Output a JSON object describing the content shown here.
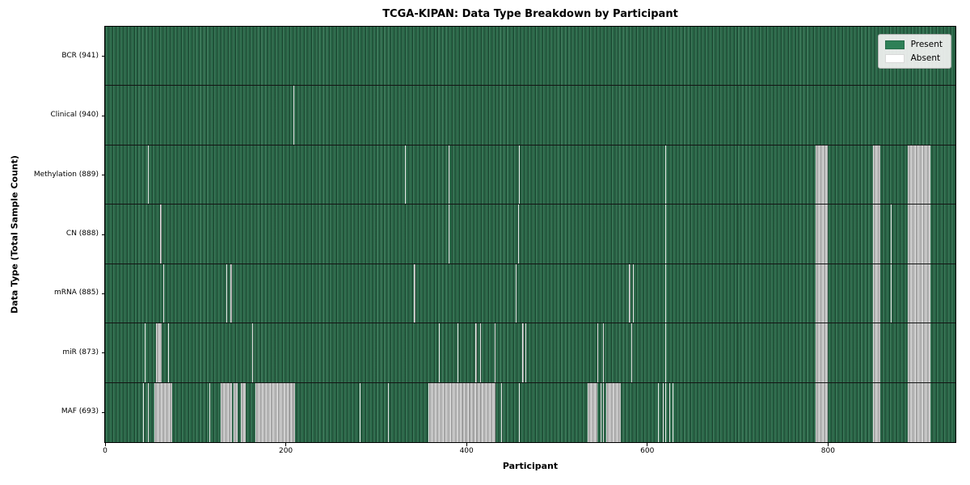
{
  "figure": {
    "title": "TCGA-KIPAN: Data Type Breakdown by Participant",
    "xlabel": "Participant",
    "ylabel": "Data Type (Total Sample Count)"
  },
  "chart_data": {
    "type": "heatmap",
    "title": "TCGA-KIPAN: Data Type Breakdown by Participant",
    "xlabel": "Participant",
    "ylabel": "Data Type (Total Sample Count)",
    "x_axis": {
      "ticks": [
        0,
        200,
        400,
        600,
        800
      ],
      "range": [
        0,
        941
      ]
    },
    "n_participants": 941,
    "legend_position": "upper right",
    "legend": [
      {
        "key": "present",
        "label": "Present",
        "color": "#2e8057"
      },
      {
        "key": "absent",
        "label": "Absent",
        "color": "#ffffff"
      }
    ],
    "colors": {
      "present": "#2d6f4d",
      "absent": "#b7b7b7",
      "row_divider": "#141414",
      "plot_border": "#000000"
    },
    "rows": [
      {
        "key": "bcr",
        "label": "BCR (941)",
        "present_count": 941,
        "absent_ranges": []
      },
      {
        "key": "clinical",
        "label": "Clinical (940)",
        "present_count": 940,
        "absent_ranges": [
          [
            208,
            1
          ]
        ]
      },
      {
        "key": "methylation",
        "label": "Methylation (889)",
        "present_count": 889,
        "absent_ranges": [
          [
            47,
            1
          ],
          [
            332,
            1
          ],
          [
            380,
            1
          ],
          [
            458,
            1
          ],
          [
            620,
            1
          ],
          [
            786,
            14
          ],
          [
            850,
            8
          ],
          [
            888,
            25
          ]
        ]
      },
      {
        "key": "cn",
        "label": "CN (888)",
        "present_count": 888,
        "absent_ranges": [
          [
            61,
            2
          ],
          [
            380,
            1
          ],
          [
            457,
            1
          ],
          [
            620,
            1
          ],
          [
            786,
            14
          ],
          [
            850,
            8
          ],
          [
            869,
            1
          ],
          [
            888,
            25
          ]
        ]
      },
      {
        "key": "mrna",
        "label": "mRNA (885)",
        "present_count": 885,
        "absent_ranges": [
          [
            64,
            1
          ],
          [
            134,
            1
          ],
          [
            139,
            1
          ],
          [
            342,
            1
          ],
          [
            454,
            1
          ],
          [
            580,
            1
          ],
          [
            584,
            1
          ],
          [
            620,
            1
          ],
          [
            786,
            14
          ],
          [
            850,
            8
          ],
          [
            869,
            1
          ],
          [
            888,
            25
          ]
        ]
      },
      {
        "key": "mir",
        "label": "miR (873)",
        "present_count": 873,
        "absent_ranges": [
          [
            44,
            1
          ],
          [
            56,
            7
          ],
          [
            70,
            1
          ],
          [
            163,
            1
          ],
          [
            369,
            1
          ],
          [
            390,
            1
          ],
          [
            410,
            1
          ],
          [
            415,
            1
          ],
          [
            431,
            1
          ],
          [
            462,
            1
          ],
          [
            465,
            1
          ],
          [
            545,
            1
          ],
          [
            551,
            1
          ],
          [
            582,
            1
          ],
          [
            620,
            1
          ],
          [
            786,
            14
          ],
          [
            850,
            8
          ],
          [
            888,
            25
          ]
        ]
      },
      {
        "key": "maf",
        "label": "MAF (693)",
        "present_count": 693,
        "absent_ranges": [
          [
            42,
            1
          ],
          [
            47,
            1
          ],
          [
            55,
            19
          ],
          [
            115,
            1
          ],
          [
            128,
            12
          ],
          [
            142,
            5
          ],
          [
            150,
            6
          ],
          [
            166,
            44
          ],
          [
            282,
            1
          ],
          [
            313,
            1
          ],
          [
            358,
            74
          ],
          [
            438,
            1
          ],
          [
            458,
            1
          ],
          [
            534,
            11
          ],
          [
            548,
            1
          ],
          [
            551,
            1
          ],
          [
            555,
            16
          ],
          [
            612,
            1
          ],
          [
            617,
            1
          ],
          [
            620,
            1
          ],
          [
            624,
            1
          ],
          [
            628,
            1
          ],
          [
            786,
            14
          ],
          [
            850,
            8
          ],
          [
            888,
            25
          ]
        ]
      }
    ]
  }
}
